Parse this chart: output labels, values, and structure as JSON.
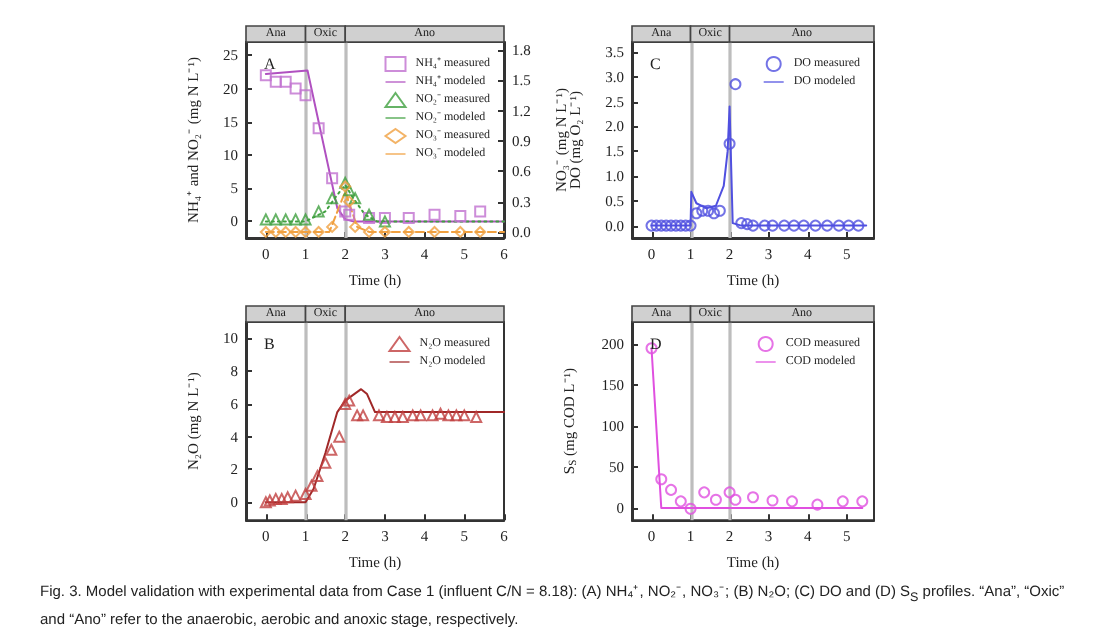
{
  "chart_data": [
    {
      "type": "scatter",
      "title": "A",
      "xlabel": "Time (h)",
      "ylabel": "NH₄⁺ and NO₂⁻ (mg N L⁻¹)",
      "y2label": "NO₃⁻ (mg N L⁻¹)",
      "xlim": [
        -0.5,
        6
      ],
      "xticks": [
        0,
        1,
        2,
        3,
        4,
        5,
        6
      ],
      "ylim": [
        -2.5,
        27
      ],
      "yticks": [
        0,
        5,
        10,
        15,
        20,
        25
      ],
      "y2lim": [
        -0.06,
        1.88
      ],
      "y2ticks": [
        {
          "value": 0,
          "label": "0.0"
        },
        {
          "value": 0.3,
          "label": "0.3"
        },
        {
          "value": 0.6,
          "label": "0.6"
        },
        {
          "value": 0.9,
          "label": "0.9"
        },
        {
          "value": 1.2,
          "label": "1.2"
        },
        {
          "value": 1.5,
          "label": "1.5"
        },
        {
          "value": 1.8,
          "label": "1.8"
        }
      ],
      "grid": false,
      "legend": "top right",
      "ref_lines": [
        {
          "axis": "x",
          "value": 1
        },
        {
          "axis": "x",
          "value": 2
        }
      ],
      "annotations": [
        "Ana",
        "Oxic",
        "Ano",
        "Fig. 3. Model validation with experimental data from Case 1 (influent C/N = 8.18): (A) NH₄⁺, NO₂⁻, NO₃⁻; (B) N₂O; (C) DO and (D) S$_{S}$ profiles. “Ana”, “Oxic” and “Ano” refer to the anaerobic, aerobic and anoxic stage, respectively."
      ],
      "series": [
        {
          "name": "NH₄⁺ measured",
          "type": "scatter",
          "marker": "square",
          "color": "#c070d0",
          "x": [
            0,
            0.25,
            0.5,
            0.75,
            1,
            1.33,
            1.67,
            2,
            2.1,
            2.6,
            3,
            3.6,
            4.25,
            4.9,
            5.4
          ],
          "values": [
            22,
            21,
            21,
            20,
            19,
            14,
            6.5,
            1.5,
            1,
            0.5,
            0.5,
            0.5,
            1,
            0.8,
            1.5
          ]
        },
        {
          "name": "NH₄⁺ modeled",
          "type": "line",
          "marker": "none",
          "line_style": "solid",
          "color": "#b050c0",
          "x": [
            0,
            1.05,
            1.8,
            2,
            2.2,
            6
          ],
          "values": [
            22.2,
            22.7,
            2,
            0.3,
            0,
            0
          ]
        },
        {
          "name": "NO₂⁻ measured",
          "type": "scatter",
          "marker": "triangle",
          "color": "#40a040",
          "x": [
            0,
            0.25,
            0.5,
            0.75,
            1,
            1.33,
            1.67,
            2,
            2.1,
            2.25,
            2.6,
            3
          ],
          "values": [
            0.3,
            0.3,
            0.3,
            0.3,
            0.3,
            1.5,
            3.5,
            5.8,
            4.7,
            3.5,
            1,
            0
          ]
        },
        {
          "name": "NO₂⁻ modeled",
          "type": "line",
          "marker": "none",
          "line_style": "dotted",
          "color": "#40a040",
          "x": [
            0,
            1,
            1.5,
            1.8,
            2,
            2.2,
            2.5,
            2.8,
            6
          ],
          "values": [
            0,
            0,
            1.5,
            4,
            5.5,
            3.5,
            1,
            0,
            0
          ]
        },
        {
          "name": "NO₃⁻ measured",
          "type": "scatter",
          "axis": "y2",
          "marker": "diamond",
          "color": "#f0a040",
          "x": [
            0,
            0.25,
            0.5,
            0.75,
            1,
            1.33,
            1.67,
            2,
            2.1,
            2.25,
            2.6,
            3,
            3.6,
            4.25,
            4.9,
            5.4
          ],
          "values": [
            0,
            0,
            0,
            0,
            0,
            0,
            0.05,
            0.45,
            0.3,
            0.05,
            0,
            0,
            0,
            0,
            0,
            0
          ]
        },
        {
          "name": "NO₃⁻ modeled",
          "type": "line",
          "axis": "y2",
          "marker": "none",
          "line_style": "dashed",
          "color": "#f0a040",
          "x": [
            0,
            1.6,
            2,
            2.3,
            2.6,
            6
          ],
          "values": [
            0,
            0,
            0.4,
            0.05,
            0,
            0
          ]
        }
      ]
    },
    {
      "type": "scatter",
      "title": "C",
      "xlabel": "Time (h)",
      "ylabel": "DO (mg O₂ L⁻¹)",
      "xlim": [
        -0.5,
        5.7
      ],
      "xticks": [
        0,
        1,
        2,
        3,
        4,
        5
      ],
      "ylim": [
        -0.25,
        3.7
      ],
      "yticks": [
        {
          "value": 0,
          "label": "0.0"
        },
        {
          "value": 0.5,
          "label": "0.5"
        },
        {
          "value": 1,
          "label": "1.0"
        },
        {
          "value": 1.5,
          "label": "1.5"
        },
        {
          "value": 2,
          "label": "2.0"
        },
        {
          "value": 2.5,
          "label": "2.5"
        },
        {
          "value": 3,
          "label": "3.0"
        },
        {
          "value": 3.5,
          "label": "3.5"
        }
      ],
      "grid": false,
      "legend": "top right",
      "ref_lines": [
        {
          "axis": "x",
          "value": 1
        },
        {
          "axis": "x",
          "value": 2
        }
      ],
      "annotations": [
        "Ana",
        "Oxic",
        "Ano"
      ],
      "series": [
        {
          "name": "DO measured",
          "type": "scatter",
          "marker": "circle",
          "color": "#5050e0",
          "x": [
            0,
            0.125,
            0.25,
            0.375,
            0.5,
            0.625,
            0.75,
            0.875,
            1,
            1.15,
            1.3,
            1.45,
            1.6,
            1.75,
            2,
            2.15,
            2.3,
            2.45,
            2.6,
            2.9,
            3.1,
            3.4,
            3.65,
            3.9,
            4.2,
            4.5,
            4.8,
            5.05,
            5.3
          ],
          "values": [
            0,
            0,
            0,
            0,
            0,
            0,
            0,
            0,
            0,
            0.25,
            0.3,
            0.3,
            0.25,
            0.3,
            1.65,
            2.85,
            0.05,
            0.03,
            0,
            0,
            0,
            0,
            0,
            0,
            0,
            0,
            0,
            0,
            0
          ]
        },
        {
          "name": "DO modeled",
          "type": "line",
          "marker": "none",
          "line_style": "solid",
          "color": "#5050e0",
          "x": [
            0,
            1,
            1.02,
            1.15,
            1.4,
            1.65,
            1.85,
            1.95,
            2,
            2.03,
            2.08,
            2.3,
            5.5
          ],
          "values": [
            0,
            0,
            0.68,
            0.45,
            0.35,
            0.4,
            0.8,
            1.5,
            2.4,
            1.5,
            0.05,
            0,
            0
          ]
        }
      ]
    },
    {
      "type": "scatter",
      "title": "B",
      "xlabel": "Time (h)",
      "ylabel": "N₂O (mg N L⁻¹)",
      "xlim": [
        -0.5,
        6
      ],
      "xticks": [
        0,
        1,
        2,
        3,
        4,
        5,
        6
      ],
      "ylim": [
        -1.1,
        11
      ],
      "yticks": [
        0,
        2,
        4,
        6,
        8,
        10
      ],
      "grid": false,
      "legend": "top right",
      "ref_lines": [
        {
          "axis": "x",
          "value": 1
        },
        {
          "axis": "x",
          "value": 2
        }
      ],
      "annotations": [
        "Ana",
        "Oxic",
        "Ano"
      ],
      "series": [
        {
          "name": "N₂O measured",
          "type": "scatter",
          "marker": "triangle",
          "color": "#c04040",
          "x": [
            0,
            0.1,
            0.25,
            0.4,
            0.55,
            0.75,
            1,
            1.15,
            1.3,
            1.5,
            1.65,
            1.85,
            2,
            2.1,
            2.3,
            2.45,
            2.85,
            3.05,
            3.25,
            3.45,
            3.7,
            3.9,
            4.2,
            4.4,
            4.6,
            4.8,
            5,
            5.3
          ],
          "values": [
            0,
            0.1,
            0.2,
            0.2,
            0.3,
            0.4,
            0.5,
            1,
            1.6,
            2.4,
            3.2,
            4,
            6,
            6.2,
            5.3,
            5.3,
            5.3,
            5.2,
            5.2,
            5.2,
            5.3,
            5.3,
            5.3,
            5.4,
            5.3,
            5.3,
            5.3,
            5.2
          ]
        },
        {
          "name": "N₂O modeled",
          "type": "line",
          "marker": "none",
          "line_style": "solid",
          "color": "#a02828",
          "x": [
            0,
            1,
            1.2,
            1.5,
            1.8,
            2,
            2.4,
            2.55,
            2.75,
            6
          ],
          "values": [
            0,
            0,
            0.8,
            3,
            5.5,
            6.2,
            6.9,
            6.6,
            5.5,
            5.5
          ]
        }
      ]
    },
    {
      "type": "scatter",
      "title": "D",
      "xlabel": "Time (h)",
      "ylabel": "S$_{S}$ (mg COD L⁻¹)",
      "xlim": [
        -0.5,
        5.7
      ],
      "xticks": [
        0,
        1,
        2,
        3,
        4,
        5
      ],
      "ylim": [
        -15,
        227
      ],
      "yticks": [
        0,
        50,
        100,
        150,
        200
      ],
      "grid": false,
      "legend": "top right",
      "ref_lines": [
        {
          "axis": "x",
          "value": 1
        },
        {
          "axis": "x",
          "value": 2
        }
      ],
      "annotations": [
        "Ana",
        "Oxic",
        "Ano"
      ],
      "series": [
        {
          "name": "COD measured",
          "type": "scatter",
          "marker": "circle",
          "color": "#e050e0",
          "x": [
            0,
            0.25,
            0.5,
            0.75,
            1,
            1.35,
            1.65,
            2,
            2.15,
            2.6,
            3.1,
            3.6,
            4.25,
            4.9,
            5.4
          ],
          "values": [
            195,
            35,
            22,
            8,
            -1,
            19,
            10,
            19,
            10,
            13,
            9,
            8,
            4,
            8,
            8
          ]
        },
        {
          "name": "COD modeled",
          "type": "line",
          "marker": "none",
          "line_style": "solid",
          "color": "#e050e0",
          "x": [
            0,
            0.25,
            5.4
          ],
          "values": [
            195,
            0,
            0
          ]
        }
      ]
    }
  ]
}
